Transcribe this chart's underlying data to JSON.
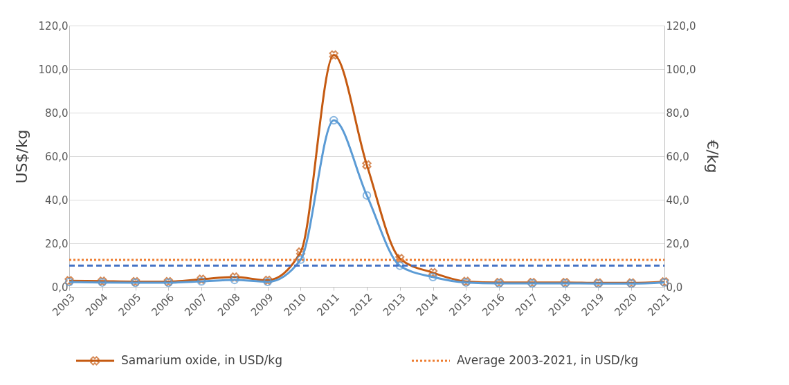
{
  "chart_data": {
    "type": "line",
    "ylabel": "US$/kg",
    "y2label": "€/kg",
    "categories": [
      "2003",
      "2004",
      "2005",
      "2006",
      "2007",
      "2008",
      "2009",
      "2010",
      "2011",
      "2012",
      "2013",
      "2014",
      "2015",
      "2016",
      "2017",
      "2018",
      "2019",
      "2020",
      "2021"
    ],
    "series": [
      {
        "name": "Samarium oxide, in USD/kg",
        "color": "#c55a11",
        "marker": "cross",
        "values": [
          2.8,
          2.6,
          2.4,
          2.4,
          3.5,
          4.5,
          3.0,
          16,
          106.5,
          56,
          13,
          6.5,
          2.5,
          2.0,
          2.0,
          2.0,
          1.8,
          1.8,
          2.3
        ]
      },
      {
        "color": "#5b9bd5",
        "marker": "circle",
        "axis": "y2",
        "values": [
          2.2,
          2.0,
          1.9,
          1.9,
          2.5,
          3.2,
          2.3,
          12.5,
          76.5,
          42,
          9.7,
          4.5,
          2.0,
          1.6,
          1.6,
          1.6,
          1.5,
          1.5,
          2.0
        ]
      }
    ],
    "ref_lines": [
      {
        "axis": "y",
        "value": 12.4,
        "label": "Average 2003-2021, in USD/kg",
        "color": "#ed7d31",
        "line_style": "dotted"
      },
      {
        "axis": "y2",
        "value": 9.8,
        "color": "#4472c4",
        "line_style": "dashed"
      }
    ],
    "ylim": [
      0,
      120
    ],
    "yticks": [
      {
        "value": 0,
        "label": "0,0"
      },
      {
        "value": 20,
        "label": "20,0"
      },
      {
        "value": 40,
        "label": "40,0"
      },
      {
        "value": 60,
        "label": "60,0"
      },
      {
        "value": 80,
        "label": "80,0"
      },
      {
        "value": 100,
        "label": "100,0"
      },
      {
        "value": 120,
        "label": "120,0"
      }
    ],
    "y2lim": [
      0,
      120
    ],
    "y2ticks": [
      {
        "value": 0,
        "label": "0,0"
      },
      {
        "value": 20,
        "label": "20,0"
      },
      {
        "value": 40,
        "label": "40,0"
      },
      {
        "value": 60,
        "label": "60,0"
      },
      {
        "value": 80,
        "label": "80,0"
      },
      {
        "value": 100,
        "label": "100,0"
      },
      {
        "value": 120,
        "label": "120,0"
      }
    ],
    "grid": "y",
    "legend": "bottom",
    "line_style": "solid"
  }
}
